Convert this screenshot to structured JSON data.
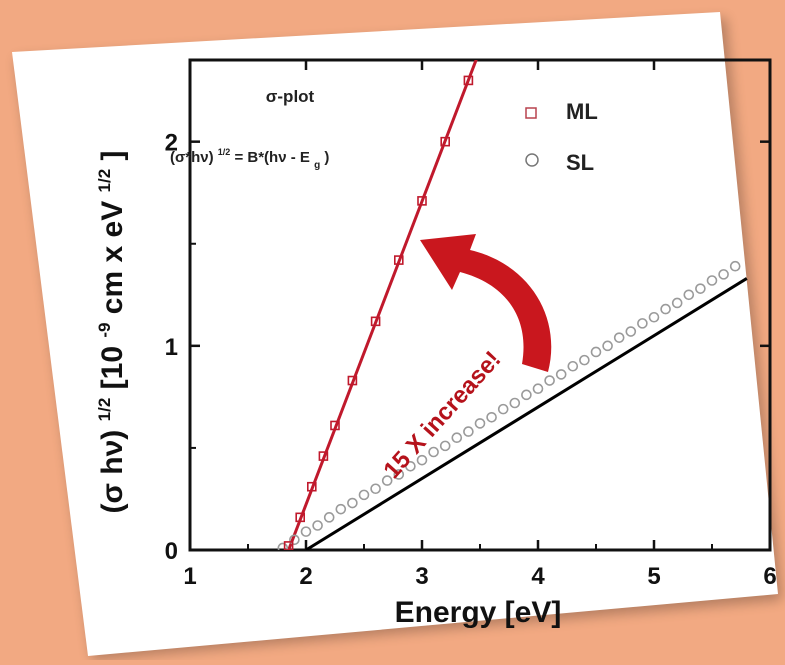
{
  "colors": {
    "background": "#f2a982",
    "panel": "#ffffff",
    "ml_series": "#c0192c",
    "sl_series": "#9a9a9a",
    "fit_line": "#000000",
    "arrow": "#c9171e"
  },
  "chart_data": {
    "type": "scatter",
    "title": "σ-plot",
    "equation": {
      "lhs": "(σ*hν)",
      "lhs_exp": "1/2",
      "rhs": " = B*(hν - E",
      "rhs_sub": "g",
      "rhs_end": ")"
    },
    "xlabel": "Energy [eV]",
    "ylabel": {
      "main": "(σ hν)",
      "main_exp": "1/2",
      "bracket": " [10",
      "bracket_exp": "-9",
      "unit": "cm x eV",
      "unit_exp": "1/2",
      "close": "]"
    },
    "xlim": [
      1,
      6
    ],
    "ylim": [
      0,
      2.4
    ],
    "xticks": [
      "1",
      "2",
      "3",
      "4",
      "5",
      "6"
    ],
    "yticks": [
      "0",
      "1",
      "2"
    ],
    "legend_position": "top-right",
    "annotation": "15 X increase!",
    "series": [
      {
        "name": "ML",
        "marker": "square",
        "x": [
          1.85,
          1.95,
          2.05,
          2.15,
          2.25,
          2.4,
          2.6,
          2.8,
          3.0,
          3.2,
          3.4
        ],
        "y": [
          0.02,
          0.16,
          0.31,
          0.46,
          0.61,
          0.83,
          1.12,
          1.42,
          1.71,
          2.0,
          2.3
        ]
      },
      {
        "name": "SL",
        "marker": "circle",
        "x": [
          1.8,
          1.9,
          2.0,
          2.1,
          2.2,
          2.3,
          2.4,
          2.5,
          2.6,
          2.7,
          2.8,
          2.9,
          3.0,
          3.1,
          3.2,
          3.3,
          3.4,
          3.5,
          3.6,
          3.7,
          3.8,
          3.9,
          4.0,
          4.1,
          4.2,
          4.3,
          4.4,
          4.5,
          4.6,
          4.7,
          4.8,
          4.9,
          5.0,
          5.1,
          5.2,
          5.3,
          5.4,
          5.5,
          5.6,
          5.7
        ],
        "y": [
          0.01,
          0.05,
          0.09,
          0.12,
          0.16,
          0.2,
          0.23,
          0.27,
          0.3,
          0.34,
          0.37,
          0.41,
          0.44,
          0.48,
          0.51,
          0.55,
          0.58,
          0.62,
          0.65,
          0.69,
          0.72,
          0.76,
          0.79,
          0.83,
          0.86,
          0.9,
          0.93,
          0.97,
          1.0,
          1.04,
          1.07,
          1.11,
          1.14,
          1.18,
          1.21,
          1.25,
          1.28,
          1.32,
          1.35,
          1.39
        ]
      }
    ],
    "fit_lines": [
      {
        "series": "ML",
        "x": [
          1.85,
          3.5
        ],
        "y": [
          0.0,
          2.45
        ]
      },
      {
        "series": "SL",
        "x": [
          2.0,
          5.8
        ],
        "y": [
          0.0,
          1.33
        ]
      }
    ]
  }
}
